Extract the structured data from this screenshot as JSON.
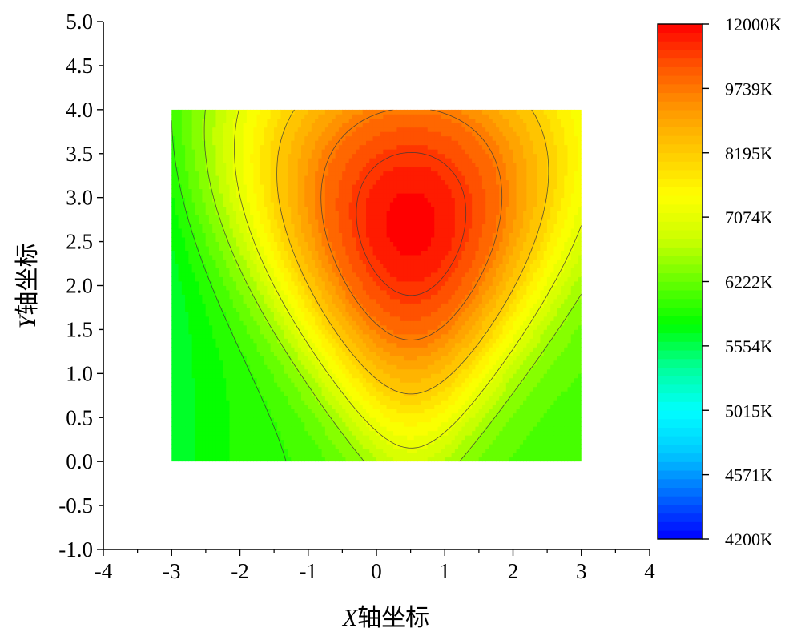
{
  "chart_data": {
    "type": "heatmap",
    "subtype": "filled-contour",
    "title": "",
    "xlabel": {
      "italic": "X",
      "rest": "轴坐标"
    },
    "ylabel": {
      "italic": "Y",
      "rest": "轴坐标"
    },
    "xlim": [
      -4,
      4
    ],
    "ylim": [
      -1,
      5
    ],
    "data_extent": {
      "x": [
        -3,
        3
      ],
      "y": [
        0,
        4
      ]
    },
    "x_ticks": [
      -4,
      -3,
      -2,
      -1,
      0,
      1,
      2,
      3,
      4
    ],
    "x_tick_labels": [
      "-4",
      "-3",
      "-2",
      "-1",
      "0",
      "1",
      "2",
      "3",
      "4"
    ],
    "y_ticks": [
      -1,
      -0.5,
      0,
      0.5,
      1,
      1.5,
      2,
      2.5,
      3,
      3.5,
      4,
      4.5,
      5
    ],
    "y_tick_labels": [
      "-1.0",
      "-0.5",
      "0.0",
      "0.5",
      "1.0",
      "1.5",
      "2.0",
      "2.5",
      "3.0",
      "3.5",
      "4.0",
      "4.5",
      "5.0"
    ],
    "grid": false,
    "hotspot": {
      "x": 0.5,
      "y": 2.7,
      "value_K": 11500
    },
    "colorbar": {
      "min": 4200,
      "max": 12000,
      "unit": "K",
      "tick_values": [
        12000,
        9739,
        8195,
        7074,
        6222,
        5554,
        5015,
        4571,
        4200
      ],
      "tick_labels": [
        "12000K",
        "9739K",
        "8195K",
        "7074K",
        "6222K",
        "5554K",
        "5015K",
        "4571K",
        "4200K"
      ],
      "colors": [
        "#0000ff",
        "#0066ff",
        "#00c8ff",
        "#00ffff",
        "#00ff99",
        "#00ff00",
        "#66ff00",
        "#ccff00",
        "#ffff00",
        "#ffcc00",
        "#ff9900",
        "#ff5500",
        "#ff0000"
      ]
    }
  }
}
